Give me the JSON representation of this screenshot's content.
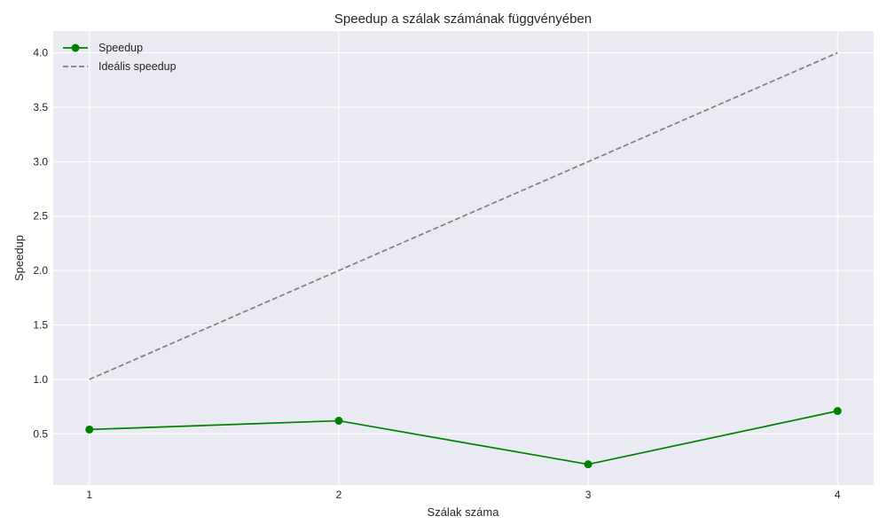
{
  "chart_data": {
    "type": "line",
    "title": "Speedup a szálak számának függvényében",
    "xlabel": "Szálak száma",
    "ylabel": "Speedup",
    "x": [
      1,
      2,
      3,
      4
    ],
    "xticks": [
      "1",
      "2",
      "3",
      "4"
    ],
    "xlim": [
      0.855,
      4.145
    ],
    "yticks": [
      "0.5",
      "1.0",
      "1.5",
      "2.0",
      "2.5",
      "3.0",
      "3.5",
      "4.0"
    ],
    "ytick_values": [
      0.5,
      1.0,
      1.5,
      2.0,
      2.5,
      3.0,
      3.5,
      4.0
    ],
    "ylim": [
      0.03,
      4.2
    ],
    "grid": true,
    "legend": "top-left",
    "series": [
      {
        "name": "Speedup",
        "values": [
          0.54,
          0.62,
          0.22,
          0.71
        ],
        "color": "#008000",
        "style": "solid",
        "marker": "circle"
      },
      {
        "name": "Ideális speedup",
        "values": [
          1.0,
          2.0,
          3.0,
          4.0
        ],
        "color": "#808080",
        "style": "dashed",
        "marker": "none"
      }
    ]
  }
}
